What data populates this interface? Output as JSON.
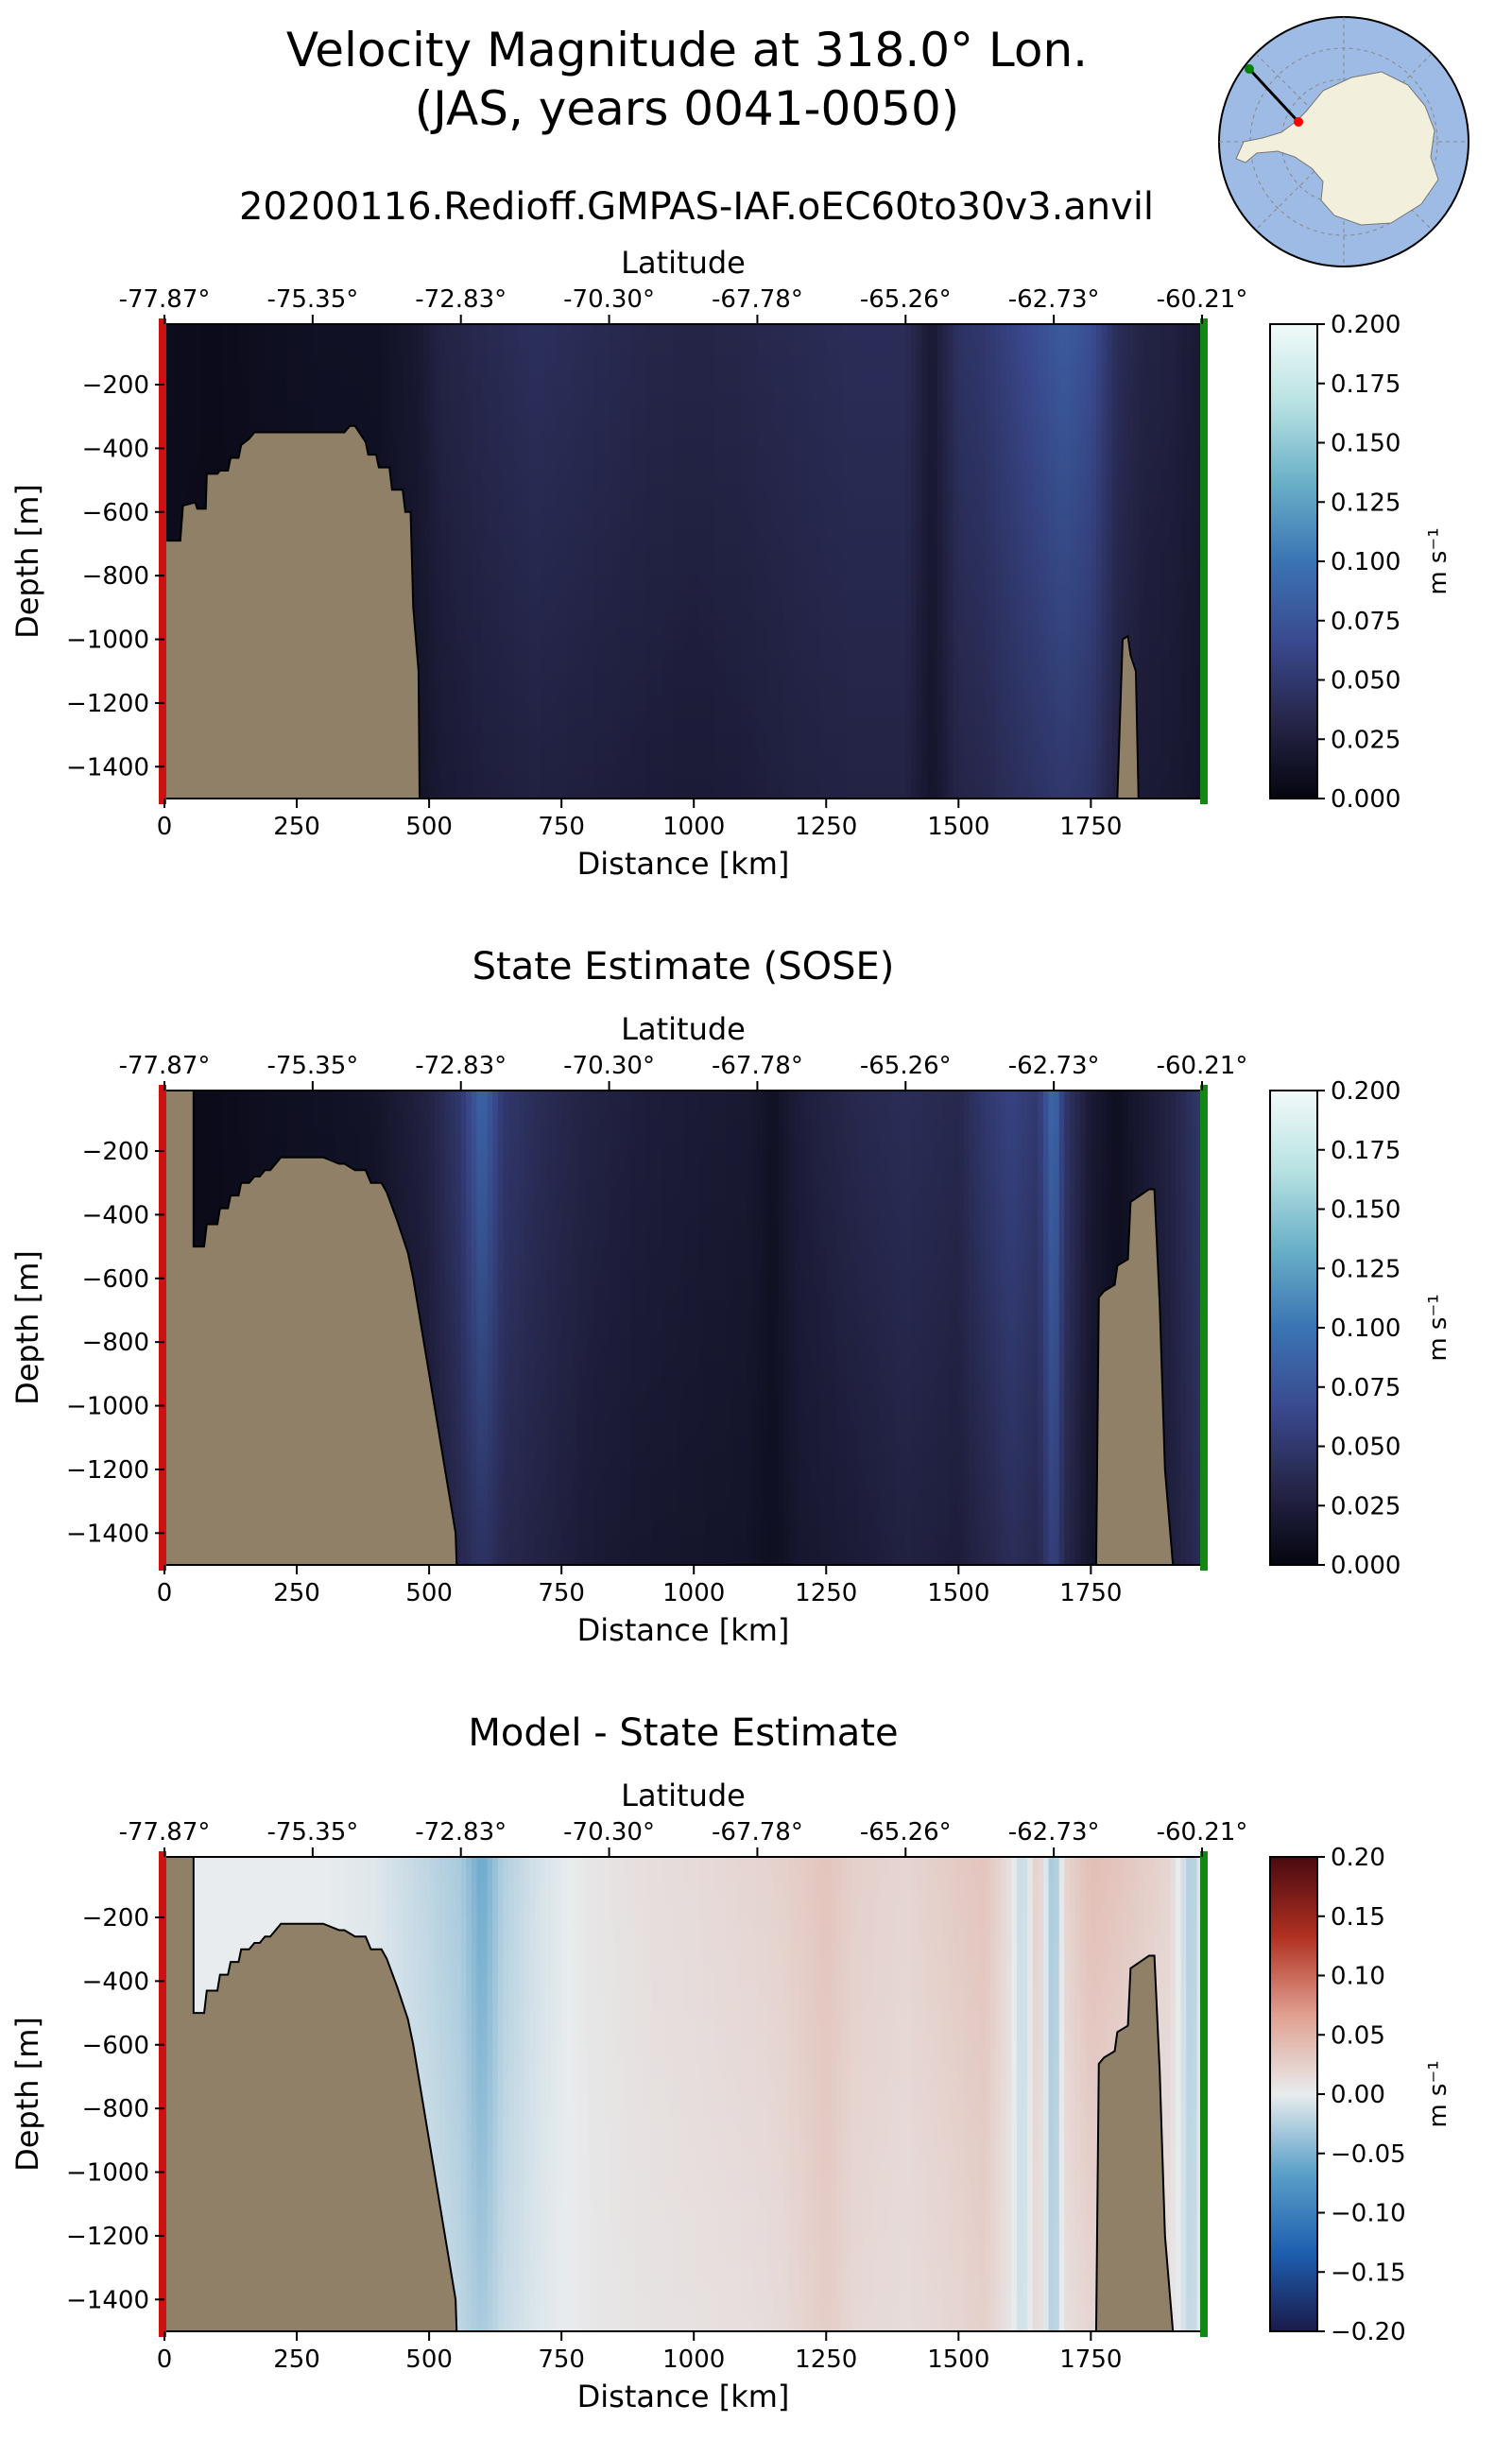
{
  "figure": {
    "title_line1": "Velocity Magnitude at 318.0° Lon.",
    "title_line2": "(JAS, years 0041-0050)",
    "run_name": "20200116.Redioff.GMPAS-IAF.oEC60to30v3.anvil"
  },
  "inset_map": {
    "projection": "south-polar",
    "section_start_color": "#ff0000",
    "section_end_color": "#008000"
  },
  "chart_data": [
    {
      "type": "heatmap",
      "title": "",
      "xlabel": "Distance [km]",
      "x2label": "Latitude",
      "ylabel": "Depth [m]",
      "xlim": [
        0,
        1960
      ],
      "ylim": [
        -1500,
        -10
      ],
      "x_ticks": [
        0,
        250,
        500,
        750,
        1000,
        1250,
        1500,
        1750
      ],
      "y_ticks": [
        -200,
        -400,
        -600,
        -800,
        -1000,
        -1200,
        -1400
      ],
      "lat_ticks": [
        "-77.87°",
        "-75.35°",
        "-72.83°",
        "-70.30°",
        "-67.78°",
        "-65.26°",
        "-62.73°",
        "-60.21°"
      ],
      "lat_tick_distance_km": [
        0,
        280,
        560,
        840,
        1120,
        1400,
        1680,
        1960
      ],
      "colorbar": {
        "label": "m s⁻¹",
        "range": [
          0,
          0.2
        ],
        "ticks": [
          "0.000",
          "0.025",
          "0.050",
          "0.075",
          "0.100",
          "0.125",
          "0.150",
          "0.175",
          "0.200"
        ],
        "colors": [
          "#050510",
          "#26264a",
          "#3a4a90",
          "#3a74b4",
          "#6ab0c8",
          "#b8e2e2",
          "#f2fafa"
        ]
      },
      "column_profile": {
        "distance_km": [
          0,
          100,
          200,
          300,
          400,
          480,
          520,
          600,
          700,
          800,
          900,
          1000,
          1100,
          1200,
          1300,
          1400,
          1450,
          1500,
          1550,
          1600,
          1650,
          1700,
          1750,
          1800,
          1850,
          1900,
          1960
        ],
        "speed_surface": [
          0.008,
          0.006,
          0.01,
          0.012,
          0.012,
          0.02,
          0.03,
          0.036,
          0.042,
          0.038,
          0.034,
          0.032,
          0.034,
          0.037,
          0.04,
          0.04,
          0.02,
          0.045,
          0.05,
          0.06,
          0.07,
          0.08,
          0.07,
          0.04,
          0.03,
          0.028,
          0.02
        ],
        "speed_bottom": [
          0.006,
          0.005,
          0.006,
          0.008,
          0.01,
          0.014,
          0.02,
          0.025,
          0.028,
          0.026,
          0.024,
          0.022,
          0.024,
          0.028,
          0.03,
          0.03,
          0.015,
          0.032,
          0.035,
          0.04,
          0.045,
          0.05,
          0.045,
          0.028,
          0.022,
          0.02,
          0.015
        ]
      },
      "bathymetry": {
        "distance_km": [
          0,
          12,
          12,
          30,
          35,
          58,
          62,
          78,
          80,
          100,
          105,
          120,
          125,
          140,
          145,
          160,
          170,
          250,
          340,
          350,
          360,
          380,
          385,
          400,
          405,
          425,
          430,
          450,
          455,
          465,
          470,
          480,
          482
        ],
        "depth_m": [
          -690,
          -690,
          -690,
          -690,
          -580,
          -570,
          -590,
          -590,
          -480,
          -480,
          -470,
          -470,
          -430,
          -430,
          -390,
          -370,
          -350,
          -350,
          -350,
          -330,
          -330,
          -380,
          -420,
          -420,
          -460,
          -460,
          -530,
          -530,
          -600,
          -600,
          -900,
          -1100,
          -1500
        ]
      },
      "seamount": {
        "distance_km": [
          1800,
          1810,
          1820,
          1825,
          1835,
          1840
        ],
        "depth_m": [
          -1500,
          -1000,
          -990,
          -1050,
          -1100,
          -1500
        ]
      }
    },
    {
      "type": "heatmap",
      "title": "State Estimate (SOSE)",
      "xlabel": "Distance [km]",
      "x2label": "Latitude",
      "ylabel": "Depth [m]",
      "xlim": [
        0,
        1960
      ],
      "ylim": [
        -1500,
        -10
      ],
      "x_ticks": [
        0,
        250,
        500,
        750,
        1000,
        1250,
        1500,
        1750
      ],
      "y_ticks": [
        -200,
        -400,
        -600,
        -800,
        -1000,
        -1200,
        -1400
      ],
      "lat_ticks": [
        "-77.87°",
        "-75.35°",
        "-72.83°",
        "-70.30°",
        "-67.78°",
        "-65.26°",
        "-62.73°",
        "-60.21°"
      ],
      "lat_tick_distance_km": [
        0,
        280,
        560,
        840,
        1120,
        1400,
        1680,
        1960
      ],
      "colorbar": {
        "label": "m s⁻¹",
        "range": [
          0,
          0.2
        ],
        "ticks": [
          "0.000",
          "0.025",
          "0.050",
          "0.075",
          "0.100",
          "0.125",
          "0.150",
          "0.175",
          "0.200"
        ],
        "colors": [
          "#050510",
          "#26264a",
          "#3a4a90",
          "#3a74b4",
          "#6ab0c8",
          "#b8e2e2",
          "#f2fafa"
        ]
      },
      "column_profile": {
        "distance_km": [
          0,
          100,
          200,
          300,
          400,
          500,
          560,
          600,
          640,
          700,
          800,
          900,
          1000,
          1100,
          1150,
          1200,
          1300,
          1400,
          1500,
          1550,
          1600,
          1650,
          1680,
          1700,
          1750,
          1800,
          1900,
          1960
        ],
        "speed_surface": [
          0.005,
          0.006,
          0.01,
          0.012,
          0.015,
          0.03,
          0.05,
          0.09,
          0.05,
          0.04,
          0.03,
          0.025,
          0.022,
          0.02,
          0.012,
          0.025,
          0.035,
          0.04,
          0.035,
          0.05,
          0.06,
          0.05,
          0.095,
          0.05,
          0.02,
          0.01,
          0.03,
          0.05
        ],
        "speed_bottom": [
          0.004,
          0.005,
          0.006,
          0.008,
          0.01,
          0.02,
          0.035,
          0.045,
          0.035,
          0.03,
          0.022,
          0.018,
          0.016,
          0.014,
          0.01,
          0.018,
          0.022,
          0.028,
          0.024,
          0.032,
          0.04,
          0.035,
          0.06,
          0.035,
          0.015,
          0.008,
          0.025,
          0.04
        ]
      },
      "bathymetry": {
        "distance_km": [
          0,
          55,
          55,
          75,
          80,
          100,
          105,
          120,
          125,
          140,
          145,
          160,
          170,
          180,
          190,
          200,
          220,
          300,
          330,
          340,
          360,
          380,
          390,
          410,
          420,
          440,
          460,
          470,
          480,
          490,
          500,
          510,
          520,
          530,
          540,
          550,
          552
        ],
        "depth_m": [
          -10,
          -10,
          -500,
          -500,
          -430,
          -430,
          -380,
          -380,
          -340,
          -340,
          -300,
          -300,
          -280,
          -280,
          -260,
          -260,
          -220,
          -220,
          -240,
          -240,
          -260,
          -260,
          -300,
          -300,
          -330,
          -420,
          -520,
          -600,
          -700,
          -800,
          -900,
          -1000,
          -1100,
          -1200,
          -1300,
          -1400,
          -1500
        ]
      },
      "seamount": {
        "distance_km": [
          1760,
          1765,
          1775,
          1795,
          1800,
          1820,
          1825,
          1860,
          1870,
          1880,
          1890,
          1905
        ],
        "depth_m": [
          -1500,
          -660,
          -640,
          -620,
          -560,
          -540,
          -360,
          -320,
          -320,
          -680,
          -1200,
          -1500
        ]
      }
    },
    {
      "type": "heatmap",
      "title": "Model - State Estimate",
      "xlabel": "Distance [km]",
      "x2label": "Latitude",
      "ylabel": "Depth [m]",
      "xlim": [
        0,
        1960
      ],
      "ylim": [
        -1500,
        -10
      ],
      "x_ticks": [
        0,
        250,
        500,
        750,
        1000,
        1250,
        1500,
        1750
      ],
      "y_ticks": [
        -200,
        -400,
        -600,
        -800,
        -1000,
        -1200,
        -1400
      ],
      "lat_ticks": [
        "-77.87°",
        "-75.35°",
        "-72.83°",
        "-70.30°",
        "-67.78°",
        "-65.26°",
        "-62.73°",
        "-60.21°"
      ],
      "lat_tick_distance_km": [
        0,
        280,
        560,
        840,
        1120,
        1400,
        1680,
        1960
      ],
      "colorbar": {
        "label": "m s⁻¹",
        "range": [
          -0.2,
          0.2
        ],
        "ticks": [
          "−0.20",
          "−0.15",
          "−0.10",
          "−0.05",
          "0.00",
          "0.05",
          "0.10",
          "0.15",
          "0.20"
        ],
        "colors": [
          "#1a1a4a",
          "#1e5fb0",
          "#5aa0c8",
          "#e8ecee",
          "#e0a090",
          "#b03020",
          "#4a0a10"
        ]
      },
      "column_profile": {
        "distance_km": [
          0,
          100,
          200,
          300,
          400,
          500,
          560,
          600,
          640,
          700,
          800,
          900,
          1000,
          1100,
          1150,
          1200,
          1250,
          1300,
          1400,
          1500,
          1550,
          1600,
          1620,
          1650,
          1680,
          1700,
          1750,
          1800,
          1900,
          1940,
          1960
        ],
        "diff_surface": [
          0.0,
          0.0,
          0.0,
          0.0,
          -0.005,
          -0.02,
          -0.03,
          -0.06,
          -0.025,
          -0.01,
          0.005,
          0.012,
          0.015,
          0.02,
          0.022,
          0.028,
          0.035,
          0.025,
          0.02,
          0.03,
          0.035,
          0.01,
          -0.02,
          0.03,
          -0.04,
          0.02,
          0.04,
          0.035,
          0.02,
          -0.03,
          0.0
        ],
        "diff_bottom": [
          0.0,
          0.0,
          0.0,
          0.0,
          -0.003,
          -0.012,
          -0.02,
          -0.03,
          -0.015,
          -0.006,
          0.004,
          0.008,
          0.01,
          0.012,
          0.014,
          0.02,
          0.028,
          0.018,
          0.014,
          0.02,
          0.025,
          0.006,
          -0.015,
          0.02,
          -0.03,
          0.012,
          0.02,
          0.015,
          0.01,
          -0.02,
          0.0
        ]
      },
      "bathymetry": {
        "distance_km": [
          0,
          55,
          55,
          75,
          80,
          100,
          105,
          120,
          125,
          140,
          145,
          160,
          170,
          180,
          190,
          200,
          220,
          300,
          330,
          340,
          360,
          380,
          390,
          410,
          420,
          440,
          460,
          470,
          480,
          490,
          500,
          510,
          520,
          530,
          540,
          550,
          552
        ],
        "depth_m": [
          -10,
          -10,
          -500,
          -500,
          -430,
          -430,
          -380,
          -380,
          -340,
          -340,
          -300,
          -300,
          -280,
          -280,
          -260,
          -260,
          -220,
          -220,
          -240,
          -240,
          -260,
          -260,
          -300,
          -300,
          -330,
          -420,
          -520,
          -600,
          -700,
          -800,
          -900,
          -1000,
          -1100,
          -1200,
          -1300,
          -1400,
          -1500
        ]
      },
      "seamount": {
        "distance_km": [
          1760,
          1765,
          1775,
          1795,
          1800,
          1820,
          1825,
          1860,
          1870,
          1880,
          1890,
          1905
        ],
        "depth_m": [
          -1500,
          -660,
          -640,
          -620,
          -560,
          -540,
          -360,
          -320,
          -320,
          -680,
          -1200,
          -1500
        ]
      }
    }
  ]
}
